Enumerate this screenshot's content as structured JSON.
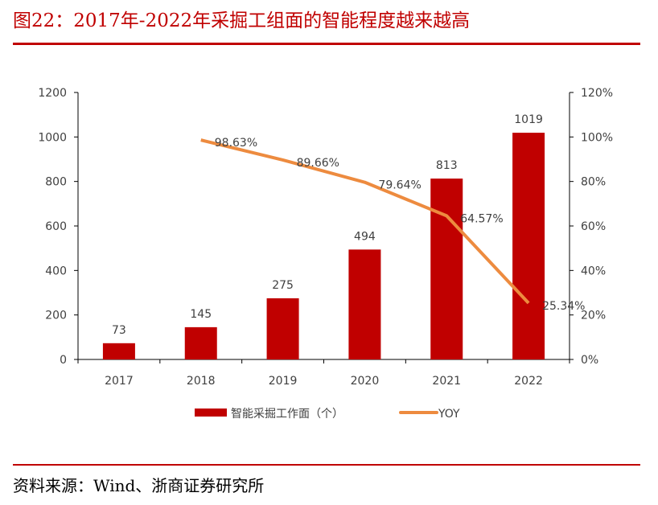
{
  "title": "图22：2017年-2022年采掘工组面的智能程度越来越高",
  "source": "资料来源：Wind、浙商证券研究所",
  "chart_data": {
    "type": "bar+line",
    "categories": [
      "2017",
      "2018",
      "2019",
      "2020",
      "2021",
      "2022"
    ],
    "series": [
      {
        "name": "智能采掘工作面（个）",
        "type": "bar",
        "axis": "left",
        "color": "#c00000",
        "values": [
          73,
          145,
          275,
          494,
          813,
          1019
        ],
        "labels": [
          "73",
          "145",
          "275",
          "494",
          "813",
          "1019"
        ]
      },
      {
        "name": "YOY",
        "type": "line",
        "axis": "right",
        "color": "#ed8b3f",
        "values": [
          null,
          98.63,
          89.66,
          79.64,
          64.57,
          25.34
        ],
        "labels": [
          "",
          "98.63%",
          "89.66%",
          "79.64%",
          "64.57%",
          "25.34%"
        ]
      }
    ],
    "left_axis": {
      "ylim": [
        0,
        1200
      ],
      "ticks": [
        "0",
        "200",
        "400",
        "600",
        "800",
        "1000",
        "1200"
      ]
    },
    "right_axis": {
      "ylim": [
        0,
        120
      ],
      "ticks": [
        "0%",
        "20%",
        "40%",
        "60%",
        "80%",
        "100%",
        "120%"
      ]
    },
    "legend": "bottom",
    "grid": false
  }
}
